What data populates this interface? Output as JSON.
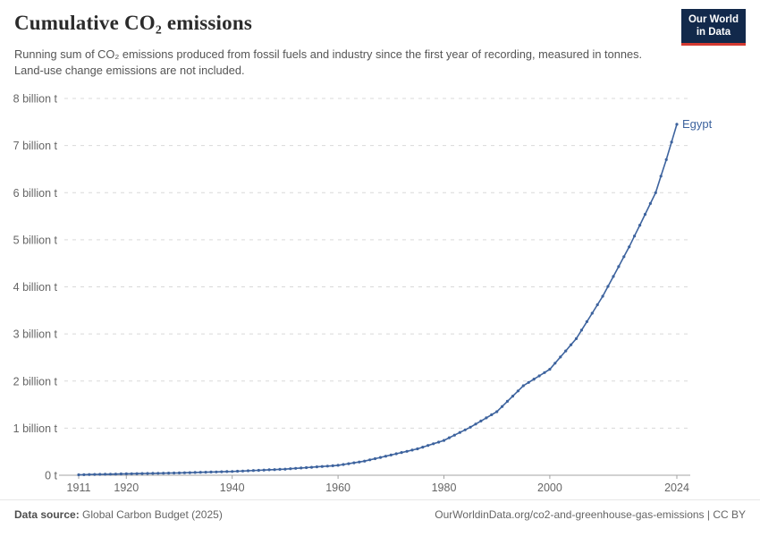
{
  "header": {
    "title": "Cumulative CO₂ emissions",
    "subtitle": "Running sum of CO₂ emissions produced from fossil fuels and industry since the first year of recording, measured in tonnes. Land-use change emissions are not included.",
    "logo": {
      "line1": "Our World",
      "line2": "in Data",
      "bg_color": "#12294b",
      "accent_color": "#d43a31"
    }
  },
  "chart_data": {
    "type": "line",
    "title": "Cumulative CO₂ emissions",
    "xlabel": "",
    "ylabel": "",
    "x_range": [
      1911,
      2024
    ],
    "ylim": [
      0,
      8
    ],
    "y_unit_billions_of_tonnes": true,
    "grid": "horizontal-dashed",
    "legend_position": "end-of-line-label",
    "x_ticks": [
      1911,
      1920,
      1940,
      1960,
      1980,
      2000,
      2024
    ],
    "y_ticks": [
      {
        "value": 0,
        "label": "0 t"
      },
      {
        "value": 1,
        "label": "1 billion t"
      },
      {
        "value": 2,
        "label": "2 billion t"
      },
      {
        "value": 3,
        "label": "3 billion t"
      },
      {
        "value": 4,
        "label": "4 billion t"
      },
      {
        "value": 5,
        "label": "5 billion t"
      },
      {
        "value": 6,
        "label": "6 billion t"
      },
      {
        "value": 7,
        "label": "7 billion t"
      },
      {
        "value": 8,
        "label": "8 billion t"
      }
    ],
    "series": [
      {
        "name": "Egypt",
        "color": "#3d639e",
        "marker_every_year": true,
        "unit": "billion tonnes",
        "anchors": [
          [
            1911,
            0.01
          ],
          [
            1920,
            0.03
          ],
          [
            1930,
            0.05
          ],
          [
            1940,
            0.08
          ],
          [
            1950,
            0.13
          ],
          [
            1955,
            0.17
          ],
          [
            1960,
            0.21
          ],
          [
            1965,
            0.3
          ],
          [
            1970,
            0.43
          ],
          [
            1975,
            0.56
          ],
          [
            1980,
            0.74
          ],
          [
            1985,
            1.02
          ],
          [
            1990,
            1.35
          ],
          [
            1995,
            1.9
          ],
          [
            2000,
            2.25
          ],
          [
            2005,
            2.9
          ],
          [
            2010,
            3.8
          ],
          [
            2015,
            4.85
          ],
          [
            2020,
            6.0
          ],
          [
            2022,
            6.7
          ],
          [
            2024,
            7.45
          ]
        ]
      }
    ],
    "colors": {
      "gridline": "#d9d9d9",
      "axis": "#a3a3a3",
      "tick_label": "#666666"
    }
  },
  "footer": {
    "source_label": "Data source:",
    "source_value": "Global Carbon Budget (2025)",
    "right_text": "OurWorldinData.org/co2-and-greenhouse-gas-emissions | CC BY"
  }
}
